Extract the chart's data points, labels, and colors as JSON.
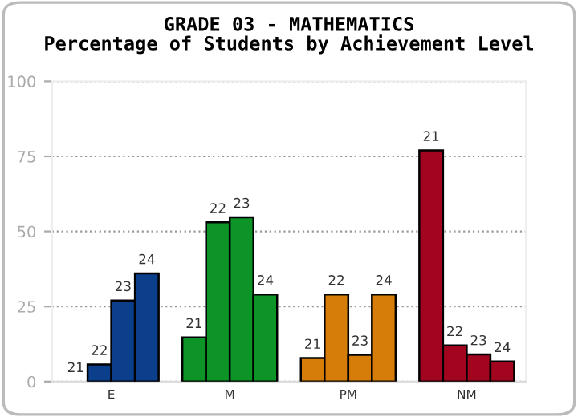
{
  "chart_data": {
    "type": "bar",
    "title": "GRADE 03 - MATHEMATICS\nPercentage of Students by Achievement Level",
    "categories": [
      "E",
      "M",
      "PM",
      "NM"
    ],
    "series": [
      {
        "name": "21",
        "colors": [
          "#0b3f8c",
          "#0d9427",
          "#d67d09",
          "#a2061e"
        ],
        "values": [
          0,
          14.7,
          7.8,
          77
        ]
      },
      {
        "name": "22",
        "colors": [
          "#0b3f8c",
          "#0d9427",
          "#d67d09",
          "#a2061e"
        ],
        "values": [
          5.7,
          53,
          29,
          12
        ]
      },
      {
        "name": "23",
        "colors": [
          "#0b3f8c",
          "#0d9427",
          "#d67d09",
          "#a2061e"
        ],
        "values": [
          27,
          54.7,
          8.9,
          9
        ]
      },
      {
        "name": "24",
        "colors": [
          "#0b3f8c",
          "#0d9427",
          "#d67d09",
          "#a2061e"
        ],
        "values": [
          36,
          29,
          29,
          6.7
        ]
      }
    ],
    "ylim": [
      0,
      100
    ],
    "yticks": [
      0,
      25,
      50,
      75,
      100
    ],
    "grid": "y",
    "legend": false
  }
}
